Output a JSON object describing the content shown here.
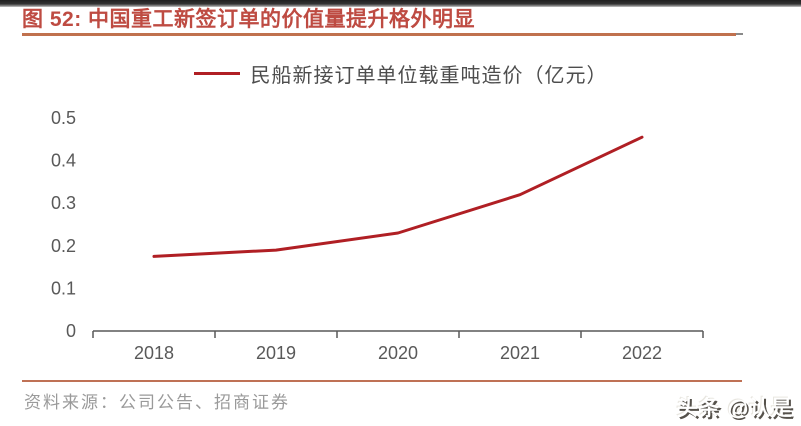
{
  "header": {
    "title": "图 52: 中国重工新签订单的价值量提升格外明显",
    "accent_color": "#BE4B42",
    "underline_color": "#C0714E"
  },
  "chart_data": {
    "type": "line",
    "title": "",
    "legend": [
      "民船新接订单单位载重吨造价（亿元）"
    ],
    "legend_position": "top-center",
    "categories": [
      "2018",
      "2019",
      "2020",
      "2021",
      "2022"
    ],
    "series": [
      {
        "name": "民船新接订单单位载重吨造价（亿元）",
        "values": [
          0.175,
          0.19,
          0.23,
          0.32,
          0.455
        ],
        "color": "#B01F24"
      }
    ],
    "xlabel": "",
    "ylabel": "",
    "ylim": [
      0,
      0.5
    ],
    "yticks": [
      "0",
      "0.1",
      "0.2",
      "0.3",
      "0.4",
      "0.5"
    ],
    "grid": false,
    "axis_color": "#595959"
  },
  "footer": {
    "source_text": "资料来源：公司公告、招商证券",
    "watermark": "头条 @认是"
  }
}
